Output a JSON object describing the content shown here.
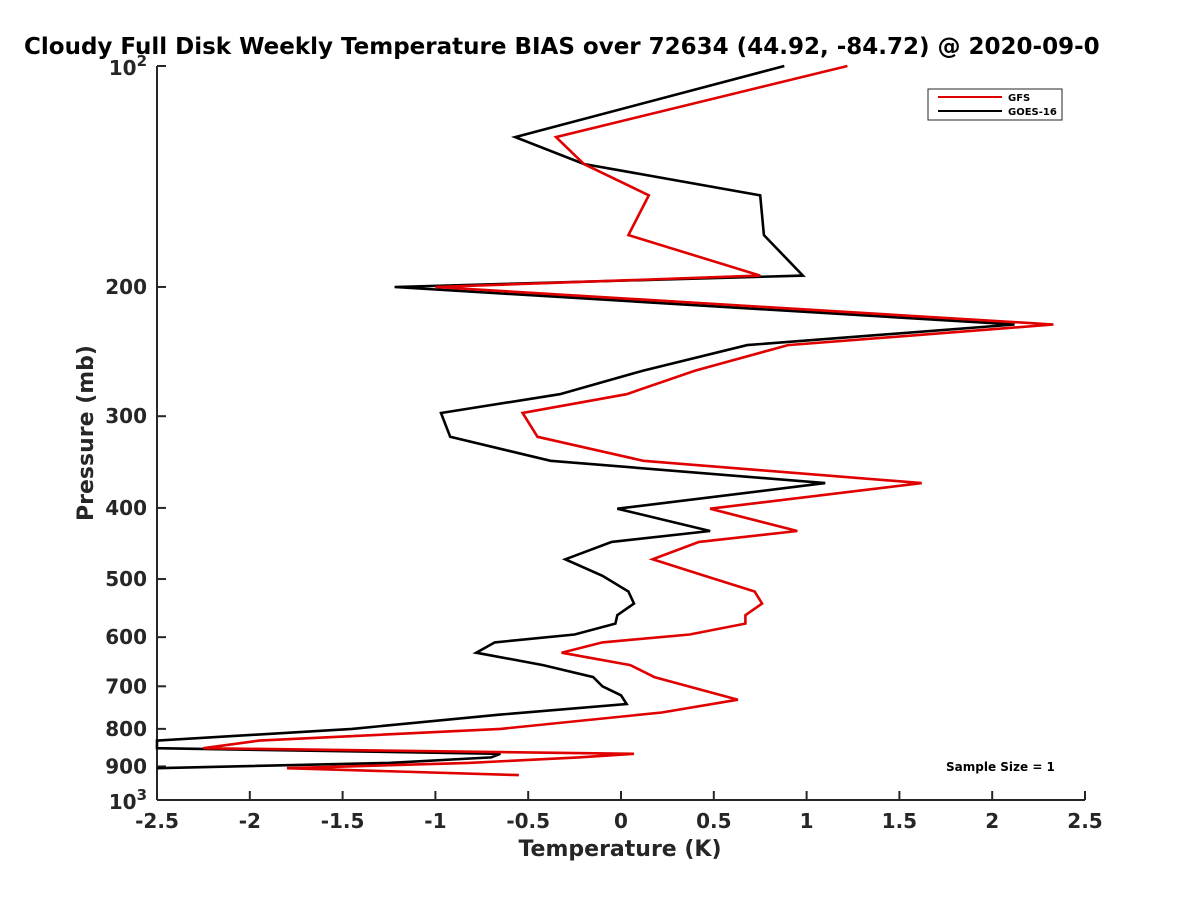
{
  "chart_data": {
    "type": "line",
    "title": "Cloudy Full Disk Weekly Temperature BIAS over 72634 (44.92, -84.72) @ 2020-09-0",
    "xlabel": "Temperature (K)",
    "ylabel": "Pressure (mb)",
    "xlim": [
      -2.5,
      2.5
    ],
    "ylim": [
      100,
      1000
    ],
    "y_scale": "log",
    "y_reversed": true,
    "x_ticks": [
      "-2.5",
      "-2",
      "-1.5",
      "-1",
      "-0.5",
      "0",
      "0.5",
      "1",
      "1.5",
      "2",
      "2.5"
    ],
    "y_ticks": [
      {
        "value": 100,
        "base": "10",
        "exp": "2"
      },
      {
        "value": 200,
        "label": "200"
      },
      {
        "value": 300,
        "label": "300"
      },
      {
        "value": 400,
        "label": "400"
      },
      {
        "value": 500,
        "label": "500"
      },
      {
        "value": 600,
        "label": "600"
      },
      {
        "value": 700,
        "label": "700"
      },
      {
        "value": 800,
        "label": "800"
      },
      {
        "value": 900,
        "label": "900"
      },
      {
        "value": 1000,
        "base": "10",
        "exp": "3"
      }
    ],
    "legend_position": "top-right",
    "annotation": "Sample Size = 1",
    "series": [
      {
        "name": "GFS",
        "color": "#e00000",
        "points": [
          [
            1.22,
            100
          ],
          [
            -0.35,
            125
          ],
          [
            -0.2,
            136
          ],
          [
            0.15,
            150
          ],
          [
            0.04,
            170
          ],
          [
            0.75,
            193
          ],
          [
            -1.0,
            200
          ],
          [
            2.33,
            225
          ],
          [
            0.9,
            240
          ],
          [
            0.4,
            260
          ],
          [
            0.03,
            280
          ],
          [
            -0.53,
            297
          ],
          [
            -0.45,
            320
          ],
          [
            0.12,
            345
          ],
          [
            1.62,
            370
          ],
          [
            0.48,
            401
          ],
          [
            0.95,
            430
          ],
          [
            0.42,
            445
          ],
          [
            0.17,
            470
          ],
          [
            0.45,
            495
          ],
          [
            0.72,
            520
          ],
          [
            0.76,
            540
          ],
          [
            0.67,
            560
          ],
          [
            0.67,
            575
          ],
          [
            0.37,
            595
          ],
          [
            -0.1,
            610
          ],
          [
            -0.32,
            630
          ],
          [
            0.05,
            655
          ],
          [
            0.18,
            680
          ],
          [
            0.63,
            730
          ],
          [
            0.22,
            760
          ],
          [
            -0.65,
            800
          ],
          [
            -1.95,
            830
          ],
          [
            -2.25,
            850
          ],
          [
            0.07,
            865
          ],
          [
            -0.23,
            875
          ],
          [
            -0.82,
            890
          ],
          [
            -1.8,
            905
          ],
          [
            -0.55,
            925
          ]
        ]
      },
      {
        "name": "GOES-16",
        "color": "#000000",
        "points": [
          [
            0.88,
            100
          ],
          [
            -0.57,
            125
          ],
          [
            -0.2,
            136
          ],
          [
            0.75,
            150
          ],
          [
            0.77,
            170
          ],
          [
            0.98,
            193
          ],
          [
            -1.22,
            200
          ],
          [
            2.12,
            225
          ],
          [
            0.68,
            240
          ],
          [
            0.12,
            260
          ],
          [
            -0.33,
            280
          ],
          [
            -0.97,
            297
          ],
          [
            -0.92,
            320
          ],
          [
            -0.38,
            345
          ],
          [
            1.1,
            370
          ],
          [
            -0.02,
            401
          ],
          [
            0.48,
            430
          ],
          [
            -0.05,
            445
          ],
          [
            -0.3,
            470
          ],
          [
            -0.1,
            495
          ],
          [
            0.04,
            520
          ],
          [
            0.07,
            540
          ],
          [
            -0.02,
            560
          ],
          [
            -0.03,
            575
          ],
          [
            -0.25,
            595
          ],
          [
            -0.68,
            610
          ],
          [
            -0.78,
            630
          ],
          [
            -0.42,
            655
          ],
          [
            -0.15,
            680
          ],
          [
            -0.1,
            700
          ],
          [
            0.0,
            720
          ],
          [
            0.03,
            740
          ],
          [
            -0.65,
            765
          ],
          [
            -1.45,
            800
          ],
          [
            -2.5,
            830
          ],
          [
            -2.5,
            850
          ],
          [
            -0.65,
            865
          ],
          [
            -0.7,
            875
          ],
          [
            -1.25,
            890
          ],
          [
            -2.5,
            905
          ]
        ]
      }
    ]
  }
}
